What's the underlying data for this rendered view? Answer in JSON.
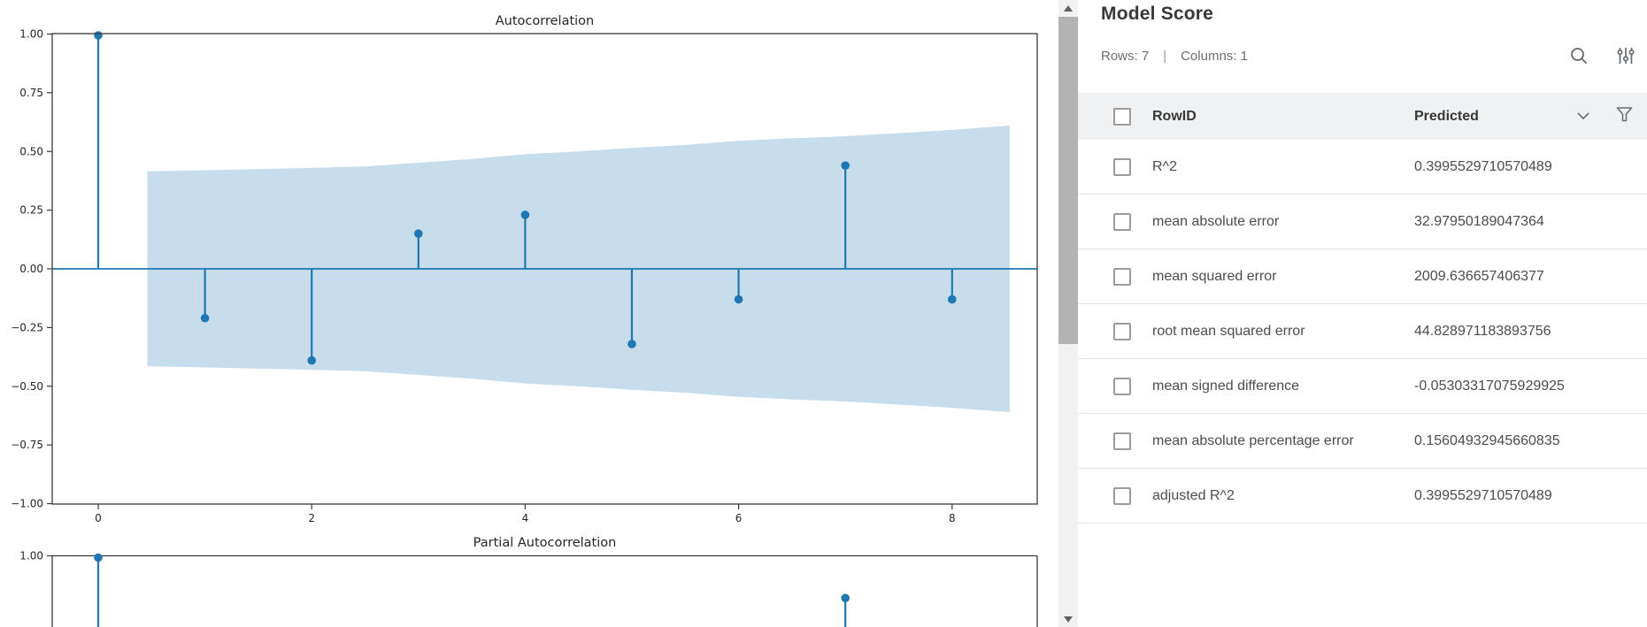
{
  "panel": {
    "title": "Model Score",
    "meta": {
      "rows_label": "Rows: 7",
      "separator": "|",
      "columns_label": "Columns: 1"
    },
    "table": {
      "columns": [
        "RowID",
        "Predicted"
      ],
      "rows": [
        {
          "id": "R^2",
          "value": "0.3995529710570489"
        },
        {
          "id": "mean absolute error",
          "value": "32.97950189047364"
        },
        {
          "id": "mean squared error",
          "value": "2009.636657406377"
        },
        {
          "id": "root mean squared error",
          "value": "44.828971183893756"
        },
        {
          "id": "mean signed difference",
          "value": "-0.05303317075929925"
        },
        {
          "id": "mean absolute percentage error",
          "value": "0.15604932945660835"
        },
        {
          "id": "adjusted R^2",
          "value": "0.3995529710570489"
        }
      ]
    },
    "icons": [
      "search-icon",
      "table-settings-icon",
      "chevron-down-icon",
      "filter-icon"
    ],
    "icon_color": "#5f6368"
  },
  "chart_data": [
    {
      "type": "stem",
      "title": "Autocorrelation",
      "x": [
        0,
        1,
        2,
        3,
        4,
        5,
        6,
        7,
        8
      ],
      "values": [
        1.0,
        -0.21,
        -0.39,
        0.15,
        0.23,
        -0.32,
        -0.13,
        0.44,
        -0.13
      ],
      "xticks": [
        0,
        2,
        4,
        6,
        8
      ],
      "ytick_labels": [
        "1.00",
        "0.75",
        "0.50",
        "0.25",
        "0.00",
        "−0.25",
        "−0.50",
        "−0.75",
        "−1.00"
      ],
      "ytick_values": [
        1.0,
        0.75,
        0.5,
        0.25,
        0.0,
        -0.25,
        -0.5,
        -0.75,
        -1.0
      ],
      "ylim": [
        -1.0,
        1.0
      ],
      "xlim": [
        -0.43,
        8.8
      ],
      "confidence_band": {
        "x": [
          0.46,
          1,
          1.5,
          2,
          2.5,
          3,
          3.5,
          4,
          4.5,
          5,
          5.5,
          6,
          6.5,
          7,
          7.5,
          8,
          8.54
        ],
        "upper": [
          0.415,
          0.42,
          0.425,
          0.43,
          0.436,
          0.452,
          0.468,
          0.488,
          0.5,
          0.515,
          0.528,
          0.545,
          0.556,
          0.565,
          0.578,
          0.592,
          0.61
        ],
        "lower_is_mirror": true
      },
      "line_color": "#1f77b4",
      "band_color": "#c7ddec",
      "grid": false,
      "legend": null
    },
    {
      "type": "stem",
      "title": "Partial Autocorrelation",
      "x": [
        0,
        7
      ],
      "values": [
        1.0,
        0.82
      ],
      "ytick_labels": [
        "1.00"
      ],
      "ytick_values": [
        1.0
      ],
      "note": "plot cut off at bottom edge of view",
      "line_color": "#1f77b4"
    }
  ]
}
